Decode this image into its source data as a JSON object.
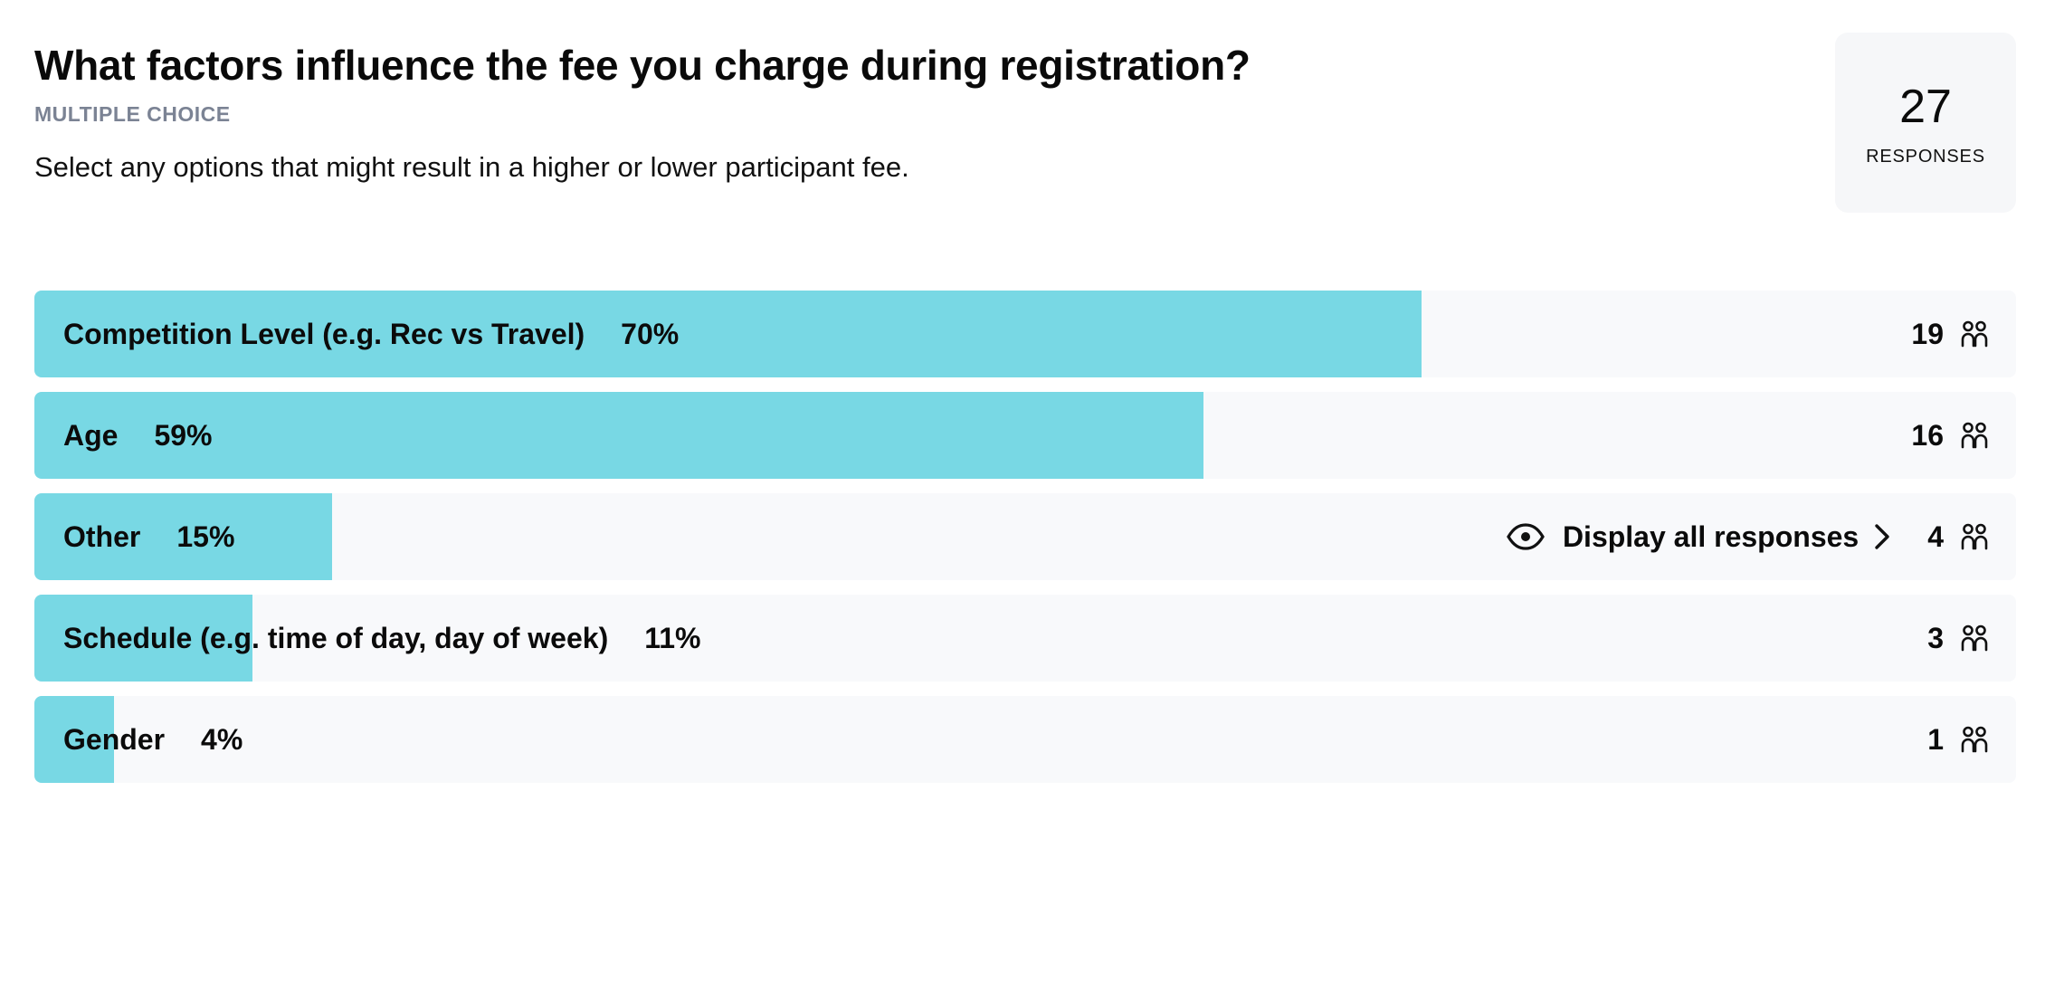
{
  "question": {
    "title": "What factors influence the fee you charge during registration?",
    "type": "MULTIPLE CHOICE",
    "description": "Select any options that might result in a higher or lower participant fee."
  },
  "responses": {
    "count": "27",
    "label": "RESPONSES"
  },
  "display_all_label": "Display all responses",
  "icons": {
    "people": "people-icon",
    "eye": "eye-icon",
    "chevron": "chevron-right-icon"
  },
  "colors": {
    "bar_fill": "#78d8e4",
    "row_bg": "#f8f9fb",
    "card_bg": "#f6f7f9",
    "muted_text": "#7b8394"
  },
  "options": [
    {
      "label": "Competition Level (e.g. Rec vs Travel)",
      "percent_label": "70%",
      "fill_percent": 70,
      "count": "19"
    },
    {
      "label": "Age",
      "percent_label": "59%",
      "fill_percent": 59,
      "count": "16"
    },
    {
      "label": "Other",
      "percent_label": "15%",
      "fill_percent": 15,
      "count": "4",
      "display_all": true
    },
    {
      "label": "Schedule (e.g. time of day, day of week)",
      "percent_label": "11%",
      "fill_percent": 11,
      "count": "3"
    },
    {
      "label": "Gender",
      "percent_label": "4%",
      "fill_percent": 4,
      "count": "1"
    }
  ]
}
